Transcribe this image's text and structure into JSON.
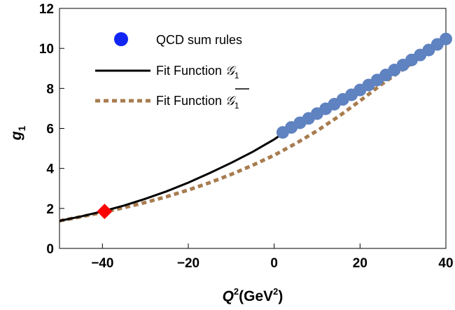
{
  "chart_data": {
    "type": "scatter",
    "xlim": [
      -50,
      40
    ],
    "ylim": [
      0,
      12
    ],
    "x_ticks": [
      -40,
      -20,
      0,
      20,
      40
    ],
    "y_ticks": [
      0,
      2,
      4,
      6,
      8,
      10,
      12
    ],
    "x_tick_labels": [
      "−40",
      "−20",
      "0",
      "20",
      "40"
    ],
    "y_tick_labels": [
      "0",
      "2",
      "4",
      "6",
      "8",
      "10",
      "12"
    ],
    "xlabel": {
      "base": "Q",
      "sup1": "2",
      "mid": "(GeV",
      "sup2": "2",
      "end": ")"
    },
    "ylabel": {
      "base": "g",
      "sub": "1"
    },
    "legend": {
      "placement": "top-left",
      "entries": [
        {
          "label": "QCD sum rules"
        },
        {
          "label": "Fit Function ",
          "symbol": "𝒢",
          "sub": "1"
        },
        {
          "label": "Fit Function ",
          "symbol": "𝒢",
          "sub": "1",
          "overline": true
        }
      ]
    },
    "series": [
      {
        "name": "QCD sum rules",
        "kind": "points",
        "color": "#5f82c0",
        "x": [
          2,
          4,
          6,
          8,
          10,
          12,
          14,
          16,
          18,
          20,
          22,
          24,
          26,
          28,
          30,
          32,
          34,
          36,
          38,
          40
        ],
        "y": [
          5.8,
          6.05,
          6.28,
          6.5,
          6.74,
          6.98,
          7.21,
          7.45,
          7.68,
          7.92,
          8.17,
          8.42,
          8.67,
          8.92,
          9.17,
          9.42,
          9.67,
          9.92,
          10.2,
          10.47
        ]
      },
      {
        "name": "Fit Function G1",
        "kind": "line",
        "style": "solid",
        "color": "#000000",
        "x": [
          -50,
          -45,
          -40,
          -35,
          -30,
          -25,
          -20,
          -15,
          -10,
          -5,
          0,
          2
        ],
        "y": [
          1.38,
          1.6,
          1.85,
          2.14,
          2.48,
          2.86,
          3.29,
          3.77,
          4.28,
          4.83,
          5.45,
          5.75
        ]
      },
      {
        "name": "Fit Function G1bar",
        "kind": "line",
        "style": "dashed",
        "color": "#a87c4f",
        "x": [
          -50,
          -45,
          -40,
          -35,
          -30,
          -25,
          -20,
          -15,
          -10,
          -5,
          0,
          5,
          10,
          15,
          20,
          25,
          30,
          35,
          40
        ],
        "y": [
          1.38,
          1.58,
          1.8,
          2.04,
          2.3,
          2.59,
          2.92,
          3.29,
          3.7,
          4.16,
          4.66,
          5.24,
          5.88,
          6.6,
          7.38,
          8.2,
          8.95,
          9.7,
          10.45
        ]
      }
    ],
    "marker": {
      "name": "diamond",
      "color": "#ff0000",
      "x": -39.5,
      "y": 1.85
    }
  }
}
